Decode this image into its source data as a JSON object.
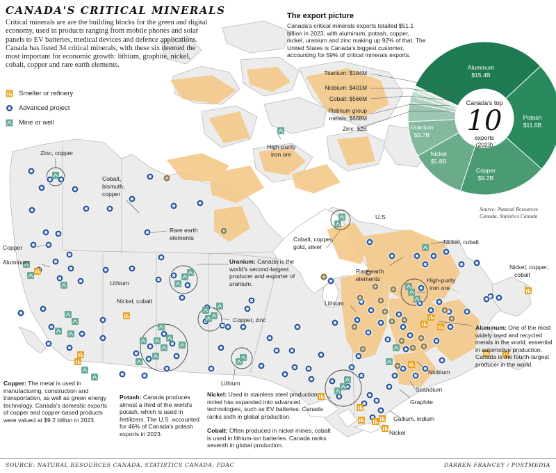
{
  "title": "CANADA'S CRITICAL MINERALS",
  "intro": "Critical minerals are are the building blocks for the green and digital economy, used in products ranging from mobile phones and solar panels to EV batteries, medical devices and defence applications. Canada has listed 34 critical minerals, with these six deemed the most important for economic growth: lithium, graphite, nickel, cobalt, copper and rare earth elements.",
  "legend": [
    {
      "label": "Smelter or refinery",
      "icon": "smelter-icon"
    },
    {
      "label": "Advanced project",
      "icon": "advanced-project-icon"
    },
    {
      "label": "Mine or well",
      "icon": "mine-icon"
    }
  ],
  "export": {
    "title": "The export picture",
    "text": "Canada's critical minerals exports totalled $51.1 billion in 2023, with aluminum, potash, copper, nickel, uranium and zinc making up 92% of that. The United States is Canada's biggest customer, accounting for 59% of critical minerals exports.",
    "center_top": "Canada's top",
    "center_number": "10",
    "center_bottom_1": "exports",
    "center_bottom_2": "(2023)",
    "source_1": "Source: Natural Resources",
    "source_2": "Canada, Statistics Canada"
  },
  "chart_data": {
    "type": "pie",
    "title": "Canada's top 10 exports (2023)",
    "categories": [
      "Aluminum",
      "Potash",
      "Copper",
      "Nickel",
      "Uranium",
      "Zinc",
      "Platinum group metals",
      "Cobalt",
      "Niobium",
      "Titanium"
    ],
    "values": [
      15.4,
      11.6,
      9.2,
      5.8,
      3.7,
      2.0,
      0.668,
      0.566,
      0.401,
      0.184
    ],
    "value_labels": [
      "$15.4B",
      "$11.6B",
      "$9.2B",
      "$5.8B",
      "$3.7B",
      "$2B",
      "$668M",
      "$566M",
      "$401M",
      "$184M"
    ],
    "colors": [
      "#1e7a52",
      "#2b8a5d",
      "#4a9b74",
      "#6aab8a",
      "#84b9a0",
      "#9cc7b3",
      "#b0d2c2",
      "#c2dccf",
      "#d1e5da",
      "#e0ede6"
    ]
  },
  "outside_labels": {
    "titanium": "Titanium: $184M",
    "niobium": "Niobium: $401M",
    "cobalt": "Cobalt: $566M",
    "pgm_1": "Platinum group",
    "pgm_2": "metals: $668M",
    "zinc": "Zinc: $2B"
  },
  "map_labels": {
    "zinc_copper": "Zinc, copper",
    "cobalt_bismuth_1": "Cobalt,",
    "cobalt_bismuth_2": "bismuth,",
    "cobalt_bismuth_3": "copper",
    "rare_earth_w_1": "Rare earth",
    "rare_earth_w_2": "elements",
    "copper_w": "Copper",
    "aluminum_w": "Aluminum",
    "lithium_w": "Lithium",
    "nickel_cobalt_w": "Nickel, cobalt",
    "high_purity_n_1": "High-purity",
    "high_purity_n_2": "iron ore",
    "copper_zinc": "Copper, zinc",
    "lithium_s": "Lithium",
    "cobalt_copper_gold_1": "Cobalt, copper,",
    "cobalt_copper_gold_2": "gold, silver",
    "us": "U.S.",
    "nickel_cobalt_e": "Nickel, cobalt",
    "rare_earth_e_1": "Rare earth",
    "rare_earth_e_2": "elements",
    "high_purity_e_1": "High-purity",
    "high_purity_e_2": "iron ore",
    "lithium_e": "Lithium",
    "niobium": "Niobium",
    "scandium": "Scandium",
    "graphite": "Graphite",
    "gallium_indium": "Gallium, indium",
    "nickel_s": "Nickel",
    "nickel_copper_cobalt_1": "Nickel, copper,",
    "nickel_copper_cobalt_2": "cobalt"
  },
  "notes": {
    "uranium_head": "Uranium:",
    "uranium_text": " Canada is the world's second-largest producer and exporter of uranium.",
    "aluminum_head": "Aluminum:",
    "aluminum_text": " One of the most widely used and recycled metals in the world, essential in automotive production. Canada is the fourth-largest producer in the world.",
    "copper_head": "Copper:",
    "copper_text": " The metal is used in manufacturing, construction and transportation, as well as green energy technology. Canada's domestic exports of copper and copper-based products were valued at $9.2 billion in 2023.",
    "potash_head": "Potash:",
    "potash_text": " Canada produces almost a third of the world's potash, which is used in fertilizers. The U.S. accounted for 46% of Canada's potash exports in 2023.",
    "nickel_head": "Nickel:",
    "nickel_text": " Used in stainless steel production, nickel has expanded into advanced technologies, such as EV batteries. Canada ranks sixth in global production.",
    "cobalt_head": "Cobalt:",
    "cobalt_text": " Often produced in nickel mines, cobalt is used in lithium-ion batteries. Canada ranks seventh in global production."
  },
  "footer": {
    "source": "SOURCE: NATURAL RESOURCES CANADA, STATISTICS CANADA, PDAC",
    "credit": "DARREN FRANCEY / POSTMEDIA"
  },
  "colors": {
    "land": "#ececec",
    "water": "#ffffff",
    "border": "#b9b9b9",
    "highlight": "#f4c98a",
    "advanced_project": "#1f4f9a",
    "mine": "#68a99c",
    "smelter": "#e8a21f",
    "donut_dark": "#1e7a52"
  }
}
